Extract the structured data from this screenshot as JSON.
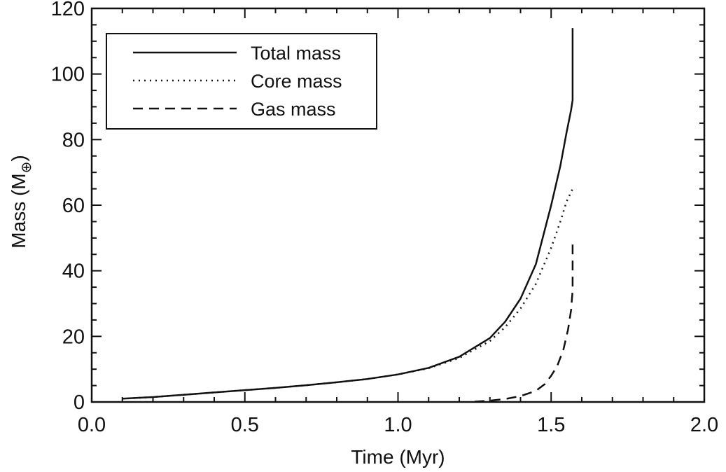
{
  "chart_data": {
    "type": "line",
    "title": "",
    "xlabel": "Time (Myr)",
    "ylabel": {
      "main": "Mass (M",
      "sub": "⊕",
      "close": ")"
    },
    "xlim": [
      0.0,
      2.0
    ],
    "ylim": [
      0,
      120
    ],
    "x_ticks": [
      "0.0",
      "0.5",
      "1.0",
      "1.5",
      "2.0"
    ],
    "y_ticks": [
      "0",
      "20",
      "40",
      "60",
      "80",
      "100",
      "120"
    ],
    "grid": false,
    "legend": {
      "position": "top-left",
      "boxed": true
    },
    "series": [
      {
        "name": "Total mass",
        "style": "solid",
        "x": [
          0.1,
          0.2,
          0.3,
          0.4,
          0.5,
          0.6,
          0.7,
          0.8,
          0.9,
          1.0,
          1.1,
          1.2,
          1.3,
          1.35,
          1.4,
          1.45,
          1.5,
          1.53,
          1.55,
          1.565,
          1.57,
          1.57
        ],
        "y": [
          1,
          1.5,
          2.2,
          2.9,
          3.6,
          4.3,
          5.1,
          6.0,
          7.0,
          8.4,
          10.4,
          13.8,
          19.5,
          24.5,
          31.5,
          42,
          60,
          72,
          82,
          89,
          92,
          114
        ]
      },
      {
        "name": "Core mass",
        "style": "dotted",
        "x": [
          0.1,
          0.2,
          0.3,
          0.4,
          0.5,
          0.6,
          0.7,
          0.8,
          0.9,
          1.0,
          1.1,
          1.2,
          1.3,
          1.35,
          1.4,
          1.45,
          1.5,
          1.53,
          1.55,
          1.57
        ],
        "y": [
          1,
          1.5,
          2.2,
          2.9,
          3.6,
          4.3,
          5.1,
          6.0,
          7.0,
          8.4,
          10.3,
          13.4,
          18.6,
          22.8,
          28.5,
          36,
          47,
          55,
          61,
          65
        ]
      },
      {
        "name": "Gas mass",
        "style": "dashed",
        "x": [
          1.25,
          1.3,
          1.35,
          1.4,
          1.45,
          1.48,
          1.5,
          1.52,
          1.54,
          1.555,
          1.565,
          1.57,
          1.57
        ],
        "y": [
          0.1,
          0.4,
          0.9,
          1.8,
          3.4,
          5.5,
          8,
          11,
          16,
          22,
          28,
          34,
          48
        ]
      }
    ]
  }
}
